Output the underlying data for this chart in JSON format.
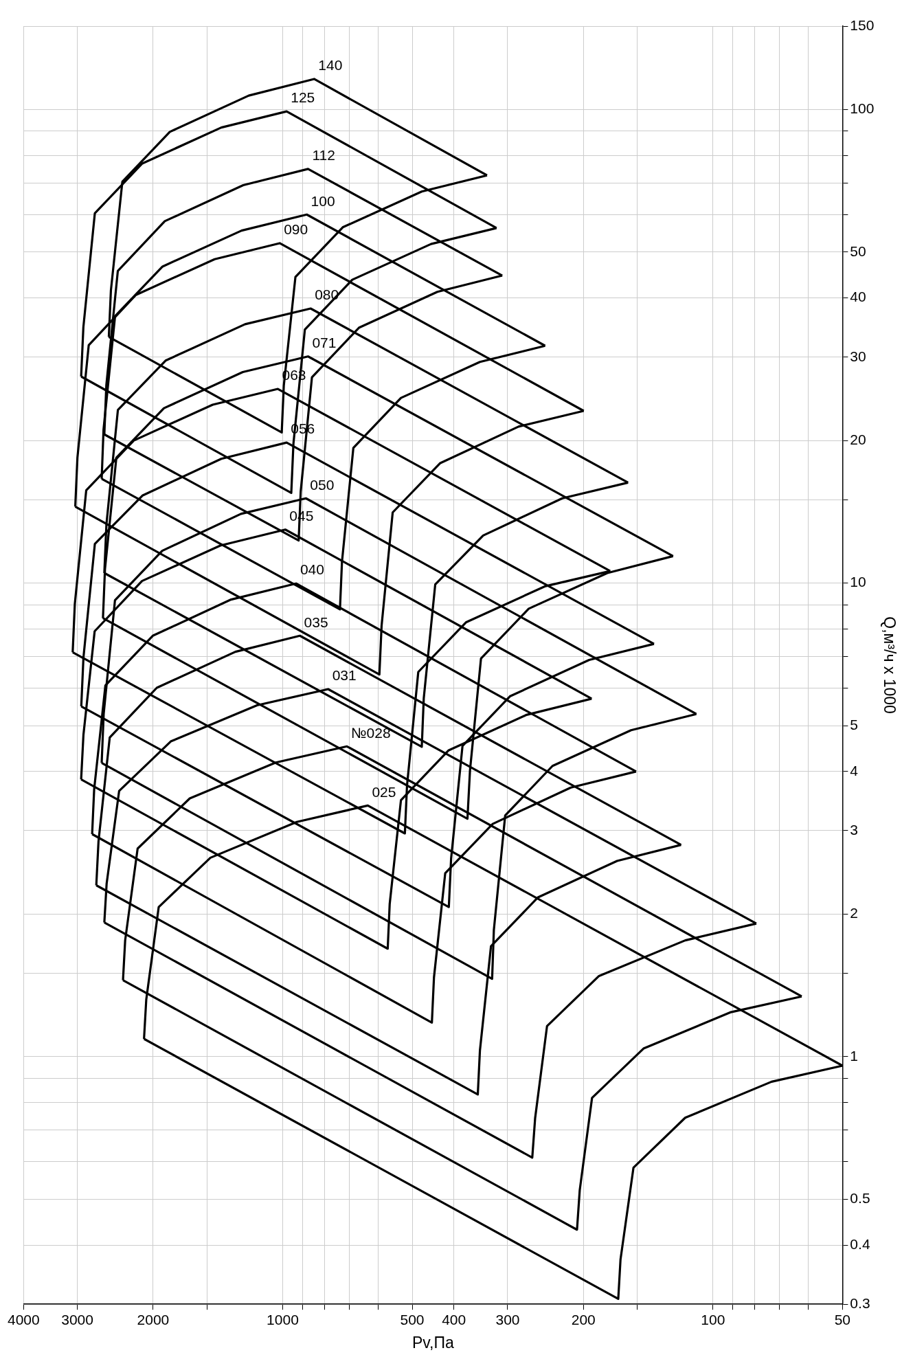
{
  "chart_data": {
    "type": "line",
    "xlabel": "Pv,Па",
    "ylabel": "Q,м³/ч x 1000",
    "log": "xy",
    "grid": true,
    "xlim": [
      4000,
      50
    ],
    "xticks": [
      4000,
      3000,
      2000,
      {
        "value": 1500,
        "label": null
      },
      1000,
      {
        "value": 900,
        "label": null
      },
      {
        "value": 800,
        "label": null
      },
      {
        "value": 700,
        "label": null
      },
      {
        "value": 600,
        "label": null
      },
      500,
      400,
      300,
      200,
      {
        "value": 150,
        "label": null
      },
      100,
      {
        "value": 90,
        "label": null
      },
      {
        "value": 80,
        "label": null
      },
      {
        "value": 70,
        "label": null
      },
      {
        "value": 60,
        "label": null
      },
      50
    ],
    "ylim": [
      0.3,
      150
    ],
    "yticks": [
      0.3,
      0.4,
      0.5,
      {
        "value": 0.6,
        "label": null
      },
      {
        "value": 0.7,
        "label": null
      },
      {
        "value": 0.8,
        "label": null
      },
      {
        "value": 0.9,
        "label": null
      },
      1,
      {
        "value": 1.5,
        "label": null
      },
      2,
      3,
      4,
      5,
      {
        "value": 6,
        "label": null
      },
      {
        "value": 7,
        "label": null
      },
      {
        "value": 8,
        "label": null
      },
      {
        "value": 9,
        "label": null
      },
      10,
      {
        "value": 15,
        "label": null
      },
      20,
      30,
      40,
      50,
      {
        "value": 60,
        "label": null
      },
      {
        "value": 70,
        "label": null
      },
      {
        "value": 80,
        "label": null
      },
      {
        "value": 90,
        "label": null
      },
      100,
      150
    ],
    "series": [
      {
        "name": "025",
        "color": "#000000",
        "x": [
          50,
          634,
          927,
          1472,
          1941,
          2075,
          2100
        ],
        "values": [
          0.957,
          3.39,
          3.13,
          2.63,
          2.07,
          1.32,
          1.09
        ]
      },
      {
        "color": "#000000",
        "x": [
          50,
          73.1,
          116,
          153,
          164,
          166,
          2100
        ],
        "values": [
          0.957,
          0.885,
          0.743,
          0.583,
          0.373,
          0.308,
          1.09
        ]
      },
      {
        "name": "№028",
        "color": "#000000",
        "x": [
          62.2,
          709,
          1037,
          1644,
          2173,
          2323,
          2350
        ],
        "values": [
          1.34,
          4.52,
          4.18,
          3.51,
          2.75,
          1.76,
          1.45
        ]
      },
      {
        "color": "#000000",
        "x": [
          62.2,
          91.2,
          145,
          191,
          204,
          207,
          2350
        ],
        "values": [
          1.34,
          1.24,
          1.04,
          0.818,
          0.522,
          0.431,
          1.45
        ]
      },
      {
        "name": "031",
        "color": "#000000",
        "x": [
          79.3,
          784,
          1147,
          1820,
          2399,
          2565,
          2597
        ],
        "values": [
          1.91,
          5.97,
          5.52,
          4.63,
          3.64,
          2.32,
          1.92
        ]
      },
      {
        "color": "#000000",
        "x": [
          79.3,
          116,
          184,
          243,
          259,
          263,
          2597
        ],
        "values": [
          1.91,
          1.76,
          1.48,
          1.16,
          0.741,
          0.612,
          1.92
        ]
      },
      {
        "name": "035",
        "color": "#000000",
        "x": [
          118.6,
          912,
          1288,
          1961,
          2523,
          2679,
          2711
        ],
        "values": [
          2.8,
          7.74,
          7.16,
          6.01,
          4.72,
          2.85,
          2.3
        ]
      },
      {
        "color": "#000000",
        "x": [
          118.6,
          167,
          255,
          328,
          348,
          352,
          2711
        ],
        "values": [
          2.8,
          2.59,
          2.17,
          1.71,
          1.03,
          0.832,
          2.3
        ]
      },
      {
        "name": "040",
        "color": "#000000",
        "x": [
          150.9,
          931,
          1318,
          2004,
          2582,
          2742,
          2772
        ],
        "values": [
          4.0,
          9.98,
          9.23,
          7.74,
          6.08,
          3.67,
          2.95
        ]
      },
      {
        "color": "#000000",
        "x": [
          150.9,
          214,
          325,
          419,
          445,
          450,
          2772
        ],
        "values": [
          4.0,
          3.7,
          3.1,
          2.44,
          1.47,
          1.18,
          2.95
        ]
      },
      {
        "name": "045",
        "color": "#000000",
        "x": [
          191.4,
          986,
          1396,
          2123,
          2735,
          2904,
          2940
        ],
        "values": [
          5.7,
          12.97,
          12.0,
          10.1,
          7.91,
          4.78,
          3.85
        ]
      },
      {
        "color": "#000000",
        "x": [
          191.4,
          271,
          412,
          531,
          564,
          570,
          2940
        ],
        "values": [
          5.7,
          5.27,
          4.43,
          3.48,
          2.1,
          1.69,
          3.85
        ]
      },
      {
        "name": "050",
        "color": "#000000",
        "x": [
          109.3,
          883,
          1250,
          1905,
          2453,
          2606,
          2634
        ],
        "values": [
          5.29,
          15.1,
          14.0,
          11.7,
          9.2,
          5.29,
          4.17
        ]
      },
      {
        "color": "#000000",
        "x": [
          109.3,
          155,
          236,
          304,
          323,
          326,
          2634
        ],
        "values": [
          5.29,
          4.89,
          4.11,
          3.23,
          1.85,
          1.46,
          4.17
        ]
      },
      {
        "name": "056",
        "color": "#000000",
        "x": [
          137.1,
          979,
          1389,
          2118,
          2732,
          2904,
          2938
        ],
        "values": [
          7.44,
          19.8,
          18.3,
          15.3,
          12.1,
          6.96,
          5.49
        ]
      },
      {
        "color": "#000000",
        "x": [
          137.1,
          194,
          296,
          382,
          406,
          411,
          2938
        ],
        "values": [
          7.44,
          6.88,
          5.77,
          4.53,
          2.62,
          2.07,
          5.49
        ]
      },
      {
        "name": "063",
        "color": "#000000",
        "x": [
          173.3,
          1026,
          1454,
          2218,
          2861,
          3041,
          3076
        ],
        "values": [
          10.6,
          25.7,
          23.8,
          20.0,
          15.7,
          9.04,
          7.14
        ]
      },
      {
        "color": "#000000",
        "x": [
          173.3,
          246,
          375,
          484,
          514,
          520,
          3076
        ],
        "values": [
          10.6,
          9.84,
          8.26,
          6.49,
          3.74,
          2.96,
          7.14
        ]
      },
      {
        "name": "071",
        "color": "#000000",
        "x": [
          123.8,
          873,
          1238,
          1888,
          2435,
          2588,
          2616
        ],
        "values": [
          11.4,
          30.1,
          27.9,
          23.4,
          18.4,
          10.7,
          8.43
        ]
      },
      {
        "color": "#000000",
        "x": [
          123.8,
          176,
          268,
          346,
          367,
          372,
          2616
        ],
        "values": [
          11.4,
          10.5,
          8.83,
          6.93,
          4.02,
          3.18,
          8.43
        ]
      },
      {
        "name": "080",
        "color": "#000000",
        "x": [
          157.5,
          861,
          1223,
          1871,
          2415,
          2568,
          2597
        ],
        "values": [
          16.3,
          38.0,
          35.2,
          29.5,
          23.2,
          13.3,
          10.5
        ]
      },
      {
        "color": "#000000",
        "x": [
          157.5,
          224,
          342,
          442,
          470,
          475,
          2597
        ],
        "values": [
          16.3,
          15.1,
          12.6,
          9.93,
          5.71,
          4.51,
          10.5
        ]
      },
      {
        "name": "090",
        "color": "#000000",
        "x": [
          199.7,
          1016,
          1439,
          2193,
          2823,
          2999,
          3034
        ],
        "values": [
          23.1,
          52.2,
          48.3,
          40.6,
          31.8,
          18.4,
          14.5
        ]
      },
      {
        "color": "#000000",
        "x": [
          199.7,
          283,
          431,
          555,
          589,
          596,
          3034
        ],
        "values": [
          23.1,
          21.4,
          17.9,
          14.1,
          8.12,
          6.41,
          14.5
        ]
      },
      {
        "name": "100",
        "color": "#000000",
        "x": [
          245.5,
          879,
          1246,
          1902,
          2452,
          2608,
          2634
        ],
        "values": [
          31.7,
          60.0,
          55.5,
          46.6,
          36.6,
          21.1,
          16.6
        ]
      },
      {
        "color": "#000000",
        "x": [
          245.5,
          348,
          531,
          685,
          728,
          736,
          2634
        ],
        "values": [
          31.7,
          29.3,
          24.6,
          19.3,
          11.1,
          8.8,
          16.6
        ]
      },
      {
        "name": "112",
        "color": "#000000",
        "x": [
          308.8,
          873,
          1235,
          1879,
          2416,
          2569,
          2597
        ],
        "values": [
          44.6,
          74.9,
          69.2,
          58.1,
          45.6,
          26.2,
          20.6
        ]
      },
      {
        "color": "#000000",
        "x": [
          308.8,
          437,
          665,
          855,
          908,
          918,
          2597
        ],
        "values": [
          44.6,
          41.2,
          34.6,
          27.2,
          15.6,
          12.3,
          20.6
        ]
      },
      {
        "name": "125",
        "color": "#000000",
        "x": [
          318.4,
          979,
          1389,
          2120,
          2732,
          2905,
          2940
        ],
        "values": [
          56.2,
          99.1,
          91.6,
          76.9,
          60.4,
          34.7,
          27.3
        ]
      },
      {
        "color": "#000000",
        "x": [
          318.4,
          452,
          689,
          888,
          944,
          955,
          2940
        ],
        "values": [
          56.2,
          52.0,
          43.7,
          34.3,
          19.7,
          15.5,
          27.3
        ]
      },
      {
        "name": "140",
        "color": "#000000",
        "x": [
          335,
          845,
          1199,
          1829,
          2358,
          2507,
          2535
        ],
        "values": [
          72.6,
          116,
          107,
          89.7,
          70.4,
          41.5,
          33.1
        ]
      },
      {
        "color": "#000000",
        "x": [
          335,
          475,
          725,
          934,
          994,
          1005,
          2535
        ],
        "values": [
          72.6,
          67.1,
          56.4,
          44.3,
          26.1,
          20.8,
          33.1
        ]
      }
    ]
  }
}
